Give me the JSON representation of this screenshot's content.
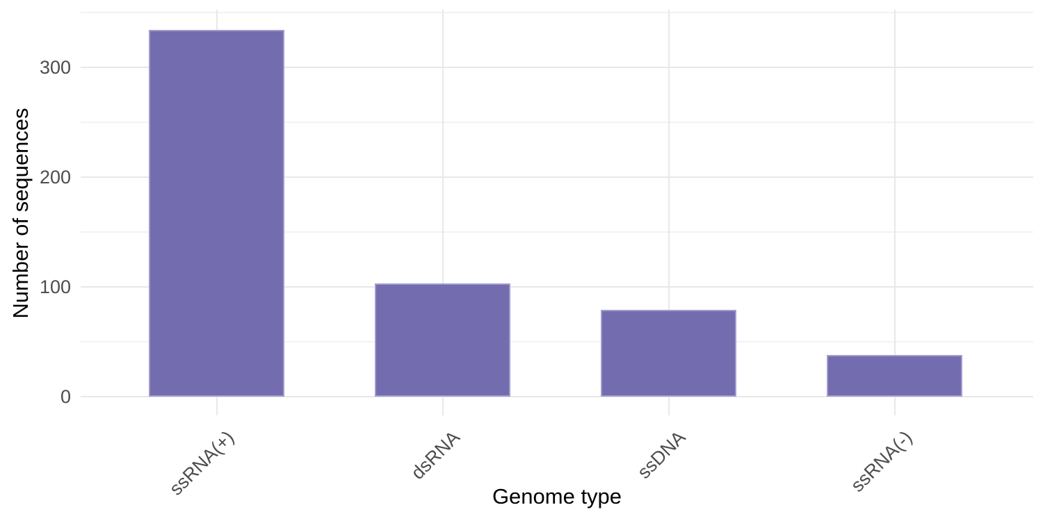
{
  "chart_data": {
    "type": "bar",
    "title": "",
    "categories": [
      "ssRNA(+)",
      "dsRNA",
      "ssDNA",
      "ssRNA(-)"
    ],
    "values": [
      334,
      103,
      79,
      38
    ],
    "xlabel": "Genome type",
    "ylabel": "Number of sequences",
    "ylim": [
      0,
      352
    ],
    "yticks_major": [
      0,
      100,
      200,
      300
    ],
    "yticks_minor": [
      50,
      150,
      250,
      350
    ],
    "grid": "on",
    "legend": "none",
    "x_tick_rotation_deg": 45,
    "colors": {
      "bar_fill": "#736CAE",
      "bar_border": "#A29CCE",
      "grid_major": "#E8E8E8",
      "grid_minor": "#F2F2F2",
      "tick_label": "#4D4D4D",
      "axis_title": "#000000",
      "background": "#FFFFFF"
    }
  }
}
